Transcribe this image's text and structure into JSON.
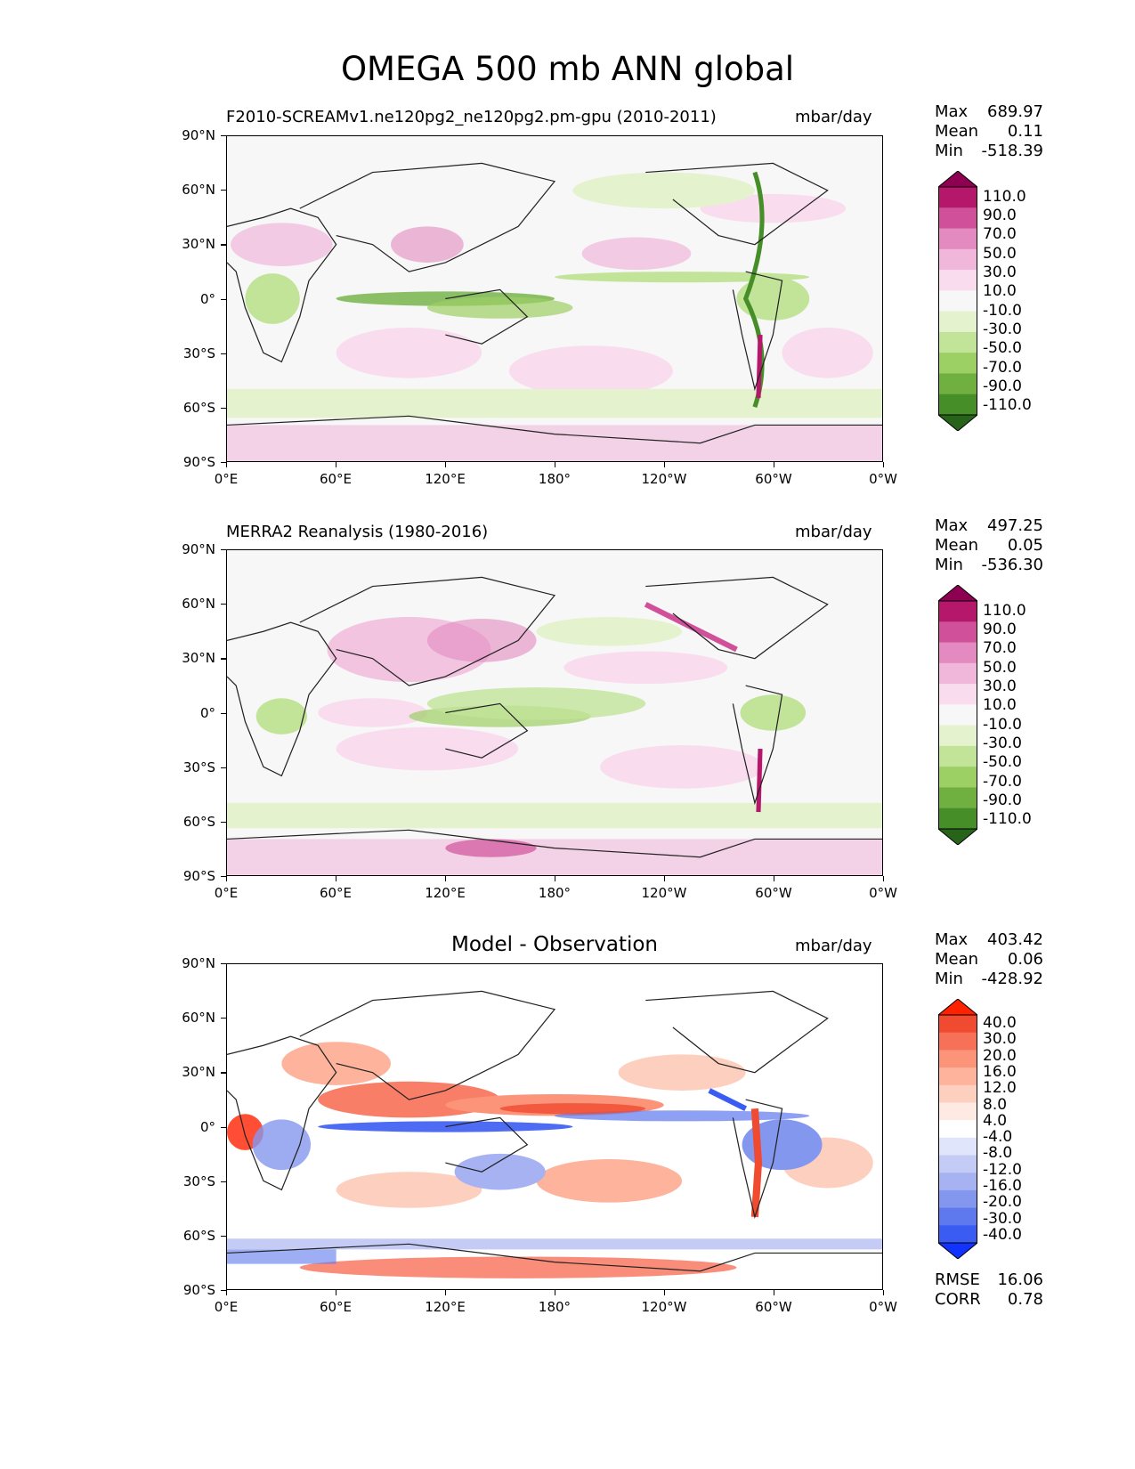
{
  "title": "OMEGA 500 mb ANN global",
  "x_tick_labels": [
    "0°E",
    "60°E",
    "120°E",
    "180°",
    "120°W",
    "60°W",
    "0°W"
  ],
  "y_tick_labels": [
    "90°N",
    "60°N",
    "30°N",
    "0°",
    "30°S",
    "60°S",
    "90°S"
  ],
  "panels": [
    {
      "title": "F2010-SCREAMv1.ne120pg2_ne120pg2.pm-gpu (2010-2011)",
      "units": "mbar/day",
      "stats": {
        "max_label": "Max",
        "max": "689.97",
        "mean_label": "Mean",
        "mean": "0.11",
        "min_label": "Min",
        "min": "-518.39"
      }
    },
    {
      "title": "MERRA2 Reanalysis (1980-2016)",
      "units": "mbar/day",
      "stats": {
        "max_label": "Max",
        "max": "497.25",
        "mean_label": "Mean",
        "mean": "0.05",
        "min_label": "Min",
        "min": "-536.30"
      }
    },
    {
      "title": "Model - Observation",
      "units": "mbar/day",
      "stats": {
        "max_label": "Max",
        "max": "403.42",
        "mean_label": "Mean",
        "mean": "0.06",
        "min_label": "Min",
        "min": "-428.92"
      },
      "rmse_label": "RMSE",
      "rmse": "16.06",
      "corr_label": "CORR",
      "corr": "0.78"
    }
  ],
  "colorbar_fields": {
    "levels": [
      "110.0",
      "90.0",
      "70.0",
      "50.0",
      "30.0",
      "10.0",
      "-10.0",
      "-30.0",
      "-50.0",
      "-70.0",
      "-90.0",
      "-110.0"
    ],
    "colors": [
      "#8e0152",
      "#b5176b",
      "#d0519a",
      "#e38bc0",
      "#f0b7da",
      "#f9ddee",
      "#f7f7f7",
      "#e4f2ce",
      "#c2e499",
      "#9ccf64",
      "#6fb040",
      "#468e27",
      "#276419"
    ]
  },
  "colorbar_diff": {
    "levels": [
      "40.0",
      "30.0",
      "20.0",
      "16.0",
      "12.0",
      "8.0",
      "4.0",
      "-4.0",
      "-8.0",
      "-12.0",
      "-16.0",
      "-20.0",
      "-30.0",
      "-40.0"
    ],
    "colors": [
      "#ff2200",
      "#f04a30",
      "#f77058",
      "#fb9478",
      "#fdb39c",
      "#fdcfbf",
      "#feeae2",
      "#ffffff",
      "#e1e5fb",
      "#c4ccf6",
      "#a6b2f1",
      "#8497ee",
      "#5e78ee",
      "#3a5cf2",
      "#1132ff"
    ]
  },
  "chart_data": {
    "type": "heatmap",
    "title": "OMEGA 500 mb ANN global",
    "variable": "OMEGA 500 mb",
    "units": "mbar/day",
    "x_range": [
      "0°E",
      "0°W"
    ],
    "y_range": [
      "90°S",
      "90°N"
    ],
    "panels": [
      {
        "name": "F2010-SCREAMv1.ne120pg2_ne120pg2.pm-gpu (2010-2011)",
        "max": 689.97,
        "mean": 0.11,
        "min": -518.39
      },
      {
        "name": "MERRA2 Reanalysis (1980-2016)",
        "max": 497.25,
        "mean": 0.05,
        "min": -536.3
      },
      {
        "name": "Model - Observation",
        "max": 403.42,
        "mean": 0.06,
        "min": -428.92,
        "rmse": 16.06,
        "corr": 0.78
      }
    ]
  }
}
